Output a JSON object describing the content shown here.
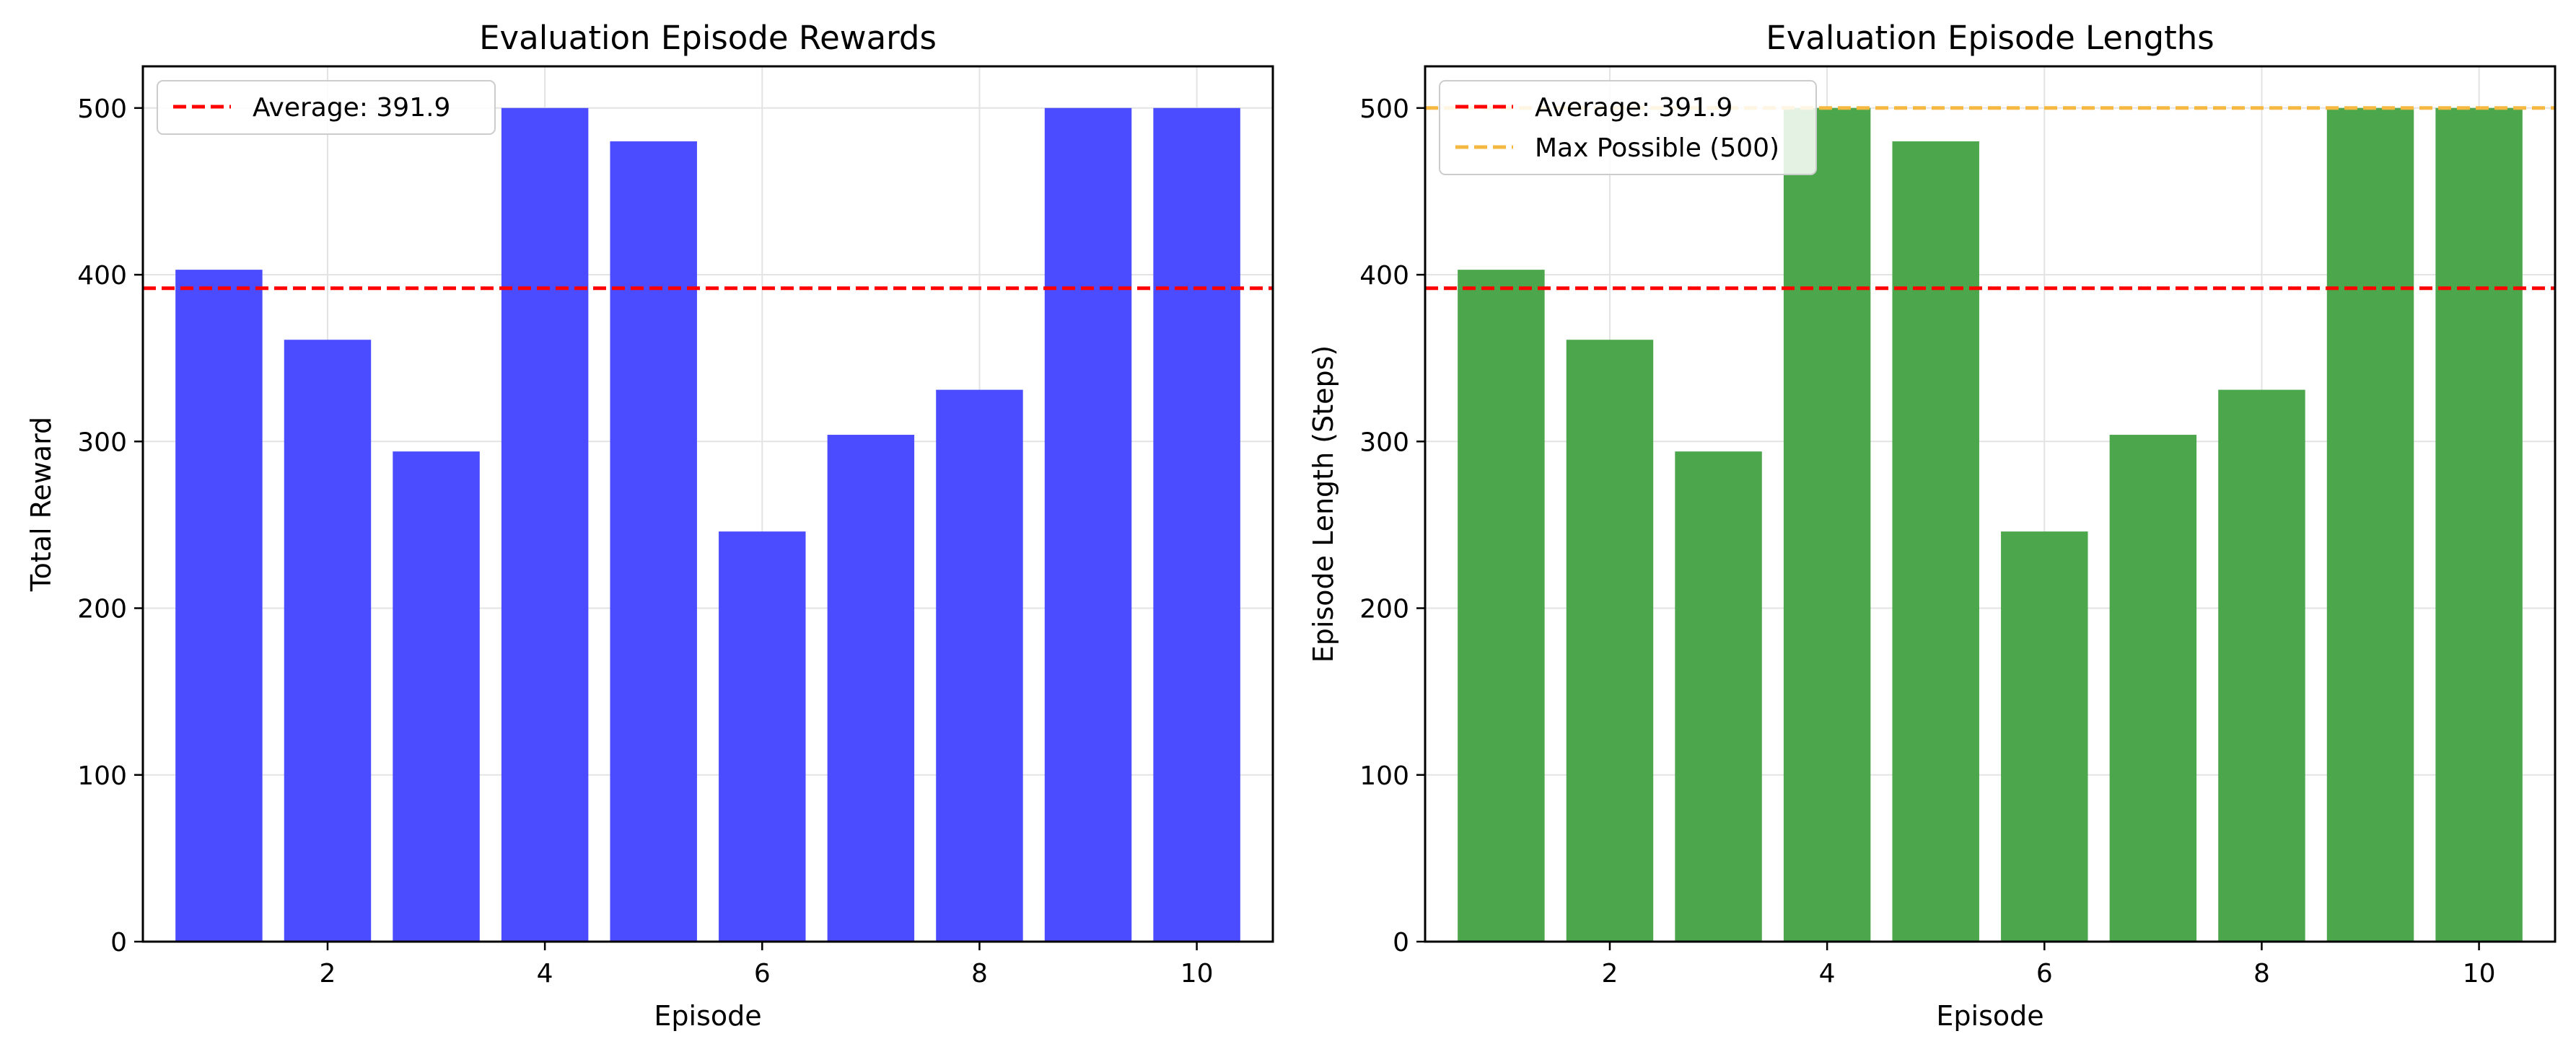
{
  "chart_data": [
    {
      "type": "bar",
      "title": "Evaluation Episode Rewards",
      "xlabel": "Episode",
      "ylabel": "Total Reward",
      "x": [
        1,
        2,
        3,
        4,
        5,
        6,
        7,
        8,
        9,
        10
      ],
      "values": [
        403,
        361,
        294,
        500,
        480,
        246,
        304,
        331,
        500,
        500
      ],
      "bar_color": "#4b4bff",
      "xlim": [
        0.3,
        10.7
      ],
      "ylim": [
        0,
        525
      ],
      "xticks": [
        2,
        4,
        6,
        8,
        10
      ],
      "yticks": [
        0,
        100,
        200,
        300,
        400,
        500
      ],
      "grid": true,
      "legend_position": "top-left",
      "reference_lines": [
        {
          "label": "Average: 391.9",
          "y": 391.9,
          "color": "#ff0000",
          "style": "dashed"
        }
      ]
    },
    {
      "type": "bar",
      "title": "Evaluation Episode Lengths",
      "xlabel": "Episode",
      "ylabel": "Episode Length (Steps)",
      "x": [
        1,
        2,
        3,
        4,
        5,
        6,
        7,
        8,
        9,
        10
      ],
      "values": [
        403,
        361,
        294,
        500,
        480,
        246,
        304,
        331,
        500,
        500
      ],
      "bar_color": "#4ca64c",
      "xlim": [
        0.3,
        10.7
      ],
      "ylim": [
        0,
        525
      ],
      "xticks": [
        2,
        4,
        6,
        8,
        10
      ],
      "yticks": [
        0,
        100,
        200,
        300,
        400,
        500
      ],
      "grid": true,
      "legend_position": "top-left",
      "reference_lines": [
        {
          "label": "Average: 391.9",
          "y": 391.9,
          "color": "#ff0000",
          "style": "dashed"
        },
        {
          "label": "Max Possible (500)",
          "y": 500,
          "color": "#f5b942",
          "style": "dashed"
        }
      ]
    }
  ]
}
